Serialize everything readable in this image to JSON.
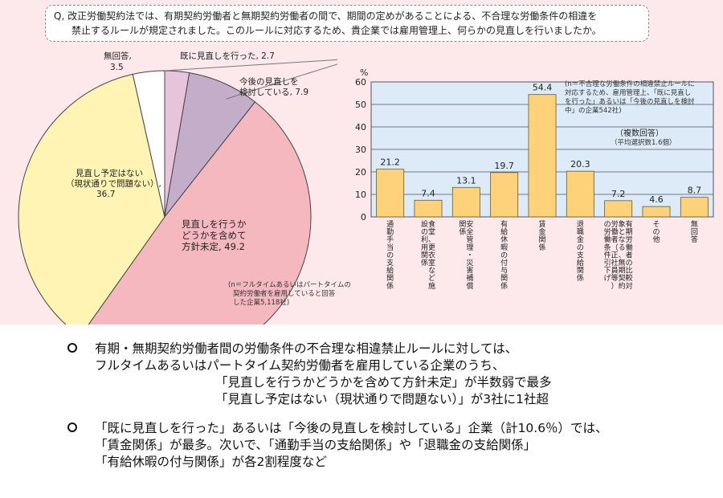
{
  "question": {
    "line1": "Q, 改正労働契約法では、有期契約労働者と無期契約労働者の間で、期間の定めがあることによる、不合理な労働条件の相違を",
    "line2": "禁止するルールが規定されました。このルールに対応するため、貴企業では雇用管理上、何らかの見直しを行いましたか。"
  },
  "pie": {
    "note": [
      "(n＝フルタイムあるいはパートタイムの",
      "契約労働者を雇用していると回答",
      "した企業5,118社)"
    ],
    "labels": {
      "done": "既に見直しを行った, 2.7",
      "consider1": "今後の見直しを",
      "consider2": "検討している, 7.9",
      "undecided1": "見直しを行うか",
      "undecided2": "どうかを含めて",
      "undecided3": "方針未定, 49.2",
      "none1": "見直し予定はない",
      "none2": "（現状通りで問題ない）,",
      "none3": "36.7",
      "noans1": "無回答,",
      "noans2": "3.5"
    }
  },
  "bar": {
    "note": [
      "(n＝不合理な労働条件の相違禁止ルールに",
      "対応するため、雇用管理上、「既に見直し",
      "を行った」あるいは「今後の見直しを検討",
      "中」の企業542社)"
    ],
    "multi": "（複数回答）",
    "avg": "（平均選択数1.6個）"
  },
  "chart_data": [
    {
      "type": "pie",
      "labels": [
        "既に見直しを行った",
        "今後の見直しを検討している",
        "見直しを行うかどうかを含めて方針未定",
        "見直し予定はない（現状通りで問題ない）",
        "無回答"
      ],
      "values": [
        2.7,
        7.9,
        49.2,
        36.7,
        3.5
      ],
      "colors": [
        "#e8c4dc",
        "#c4adc8",
        "#f5b8bf",
        "#fff4b3",
        "#ffffff"
      ]
    },
    {
      "type": "bar",
      "ylabel": "%",
      "ylim": [
        0,
        60
      ],
      "yticks": [
        0,
        10,
        20,
        30,
        40,
        50,
        60
      ],
      "grid": true,
      "categories": [
        "通勤手当の支給関係",
        "食堂、更衣室など施設の利用関係",
        "安全管理・災害補償関係",
        "有給休暇の付与関係",
        "賃金関係",
        "退職金の支給関係",
        "有期労働者の比較対象となる、無期契約労働者（正社員等）の労働条件引下げ",
        "その他",
        "無回答"
      ],
      "values": [
        21.2,
        7.4,
        13.1,
        19.7,
        54.4,
        20.3,
        7.2,
        4.6,
        8.7
      ],
      "bar_color": "#fdd27a",
      "background": "#dcebf7"
    }
  ],
  "summary": {
    "b1": [
      "有期・無期契約労働者間の労働条件の不合理な相違禁止ルールに対しては、",
      "フルタイムあるいはパートタイム契約労働者を雇用している企業のうち、",
      "「見直しを行うかどうかを含めて方針未定」が半数弱で最多",
      "「見直し予定はない（現状通りで問題ない）」が3社に1社超"
    ],
    "b2": [
      "「既に見直しを行った」あるいは「今後の見直しを検討している」企業（計10.6％）では、",
      "「賃金関係」が最多。次いで、「通勤手当の支給関係」や「退職金の支給関係」",
      "「有給休暇の付与関係」が各2割程度など"
    ]
  }
}
